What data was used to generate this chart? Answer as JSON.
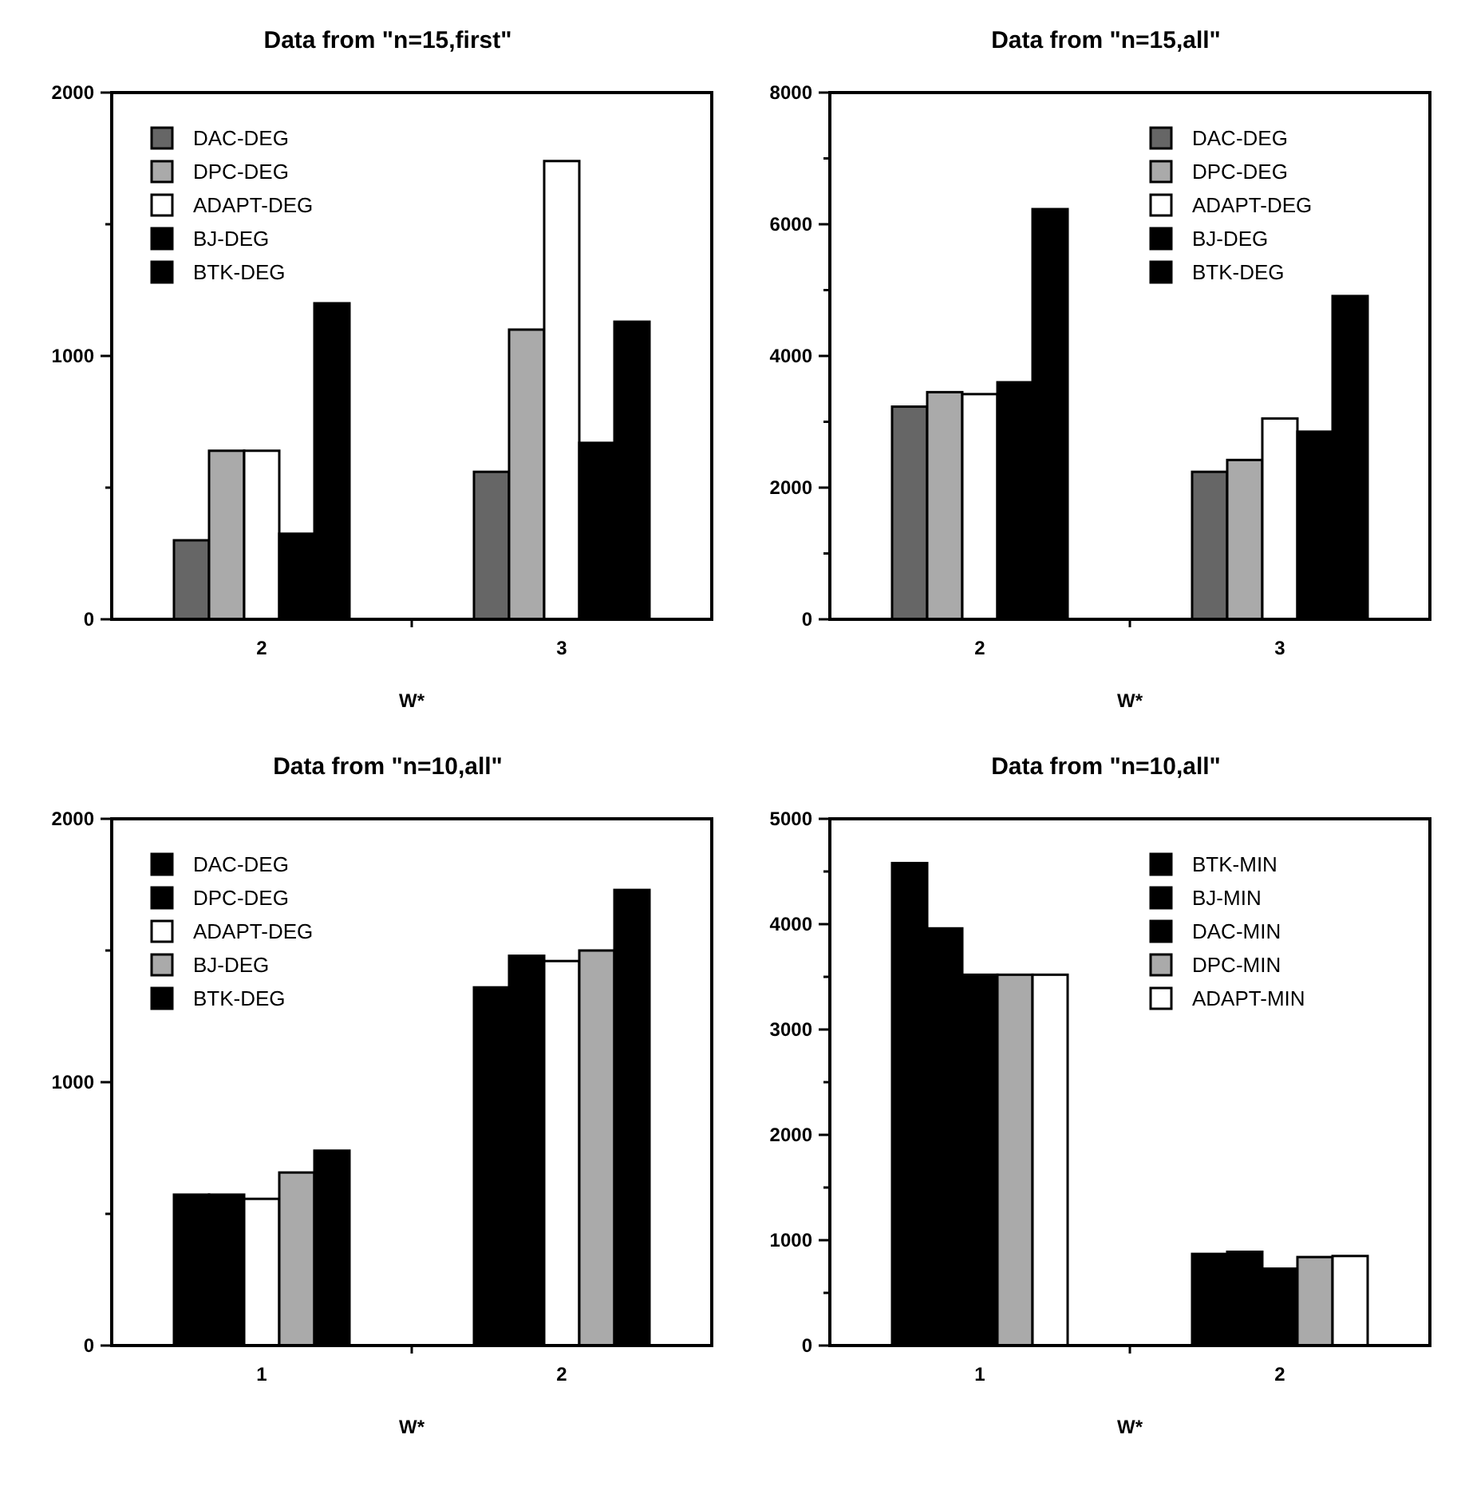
{
  "chart_data": [
    {
      "type": "bar",
      "title": "Data from \"n=15,first\"",
      "xlabel": "W*",
      "categories": [
        "2",
        "3"
      ],
      "ylim": [
        0,
        2000
      ],
      "yticks": [
        0,
        {
          "value": 500,
          "label": null
        },
        1000,
        {
          "value": 1500,
          "label": null
        },
        2000
      ],
      "legend": "top left",
      "grid": false,
      "series": [
        {
          "name": "DAC-DEG",
          "color": "#666666",
          "values": [
            300,
            560
          ]
        },
        {
          "name": "DPC-DEG",
          "color": "#aaaaaa",
          "values": [
            640,
            1100
          ]
        },
        {
          "name": "ADAPT-DEG",
          "color": "#ffffff",
          "values": [
            640,
            1740
          ]
        },
        {
          "name": "BJ-DEG",
          "color": "#000000",
          "values": [
            325,
            670
          ]
        },
        {
          "name": "BTK-DEG",
          "color": "#000000",
          "values": [
            1200,
            1130
          ]
        }
      ]
    },
    {
      "type": "bar",
      "title": "Data from \"n=15,all\"",
      "xlabel": "W*",
      "categories": [
        "2",
        "3"
      ],
      "ylim": [
        0,
        8000
      ],
      "yticks": [
        0,
        {
          "value": 1000,
          "label": null
        },
        2000,
        {
          "value": 3000,
          "label": null
        },
        4000,
        {
          "value": 5000,
          "label": null
        },
        6000,
        {
          "value": 7000,
          "label": null
        },
        8000
      ],
      "legend": "top right",
      "grid": false,
      "series": [
        {
          "name": "DAC-DEG",
          "color": "#666666",
          "values": [
            3230,
            2240
          ]
        },
        {
          "name": "DPC-DEG",
          "color": "#aaaaaa",
          "values": [
            3450,
            2420
          ]
        },
        {
          "name": "ADAPT-DEG",
          "color": "#ffffff",
          "values": [
            3420,
            3050
          ]
        },
        {
          "name": "BJ-DEG",
          "color": "#000000",
          "values": [
            3600,
            2850
          ]
        },
        {
          "name": "BTK-DEG",
          "color": "#000000",
          "values": [
            6230,
            4910
          ]
        }
      ]
    },
    {
      "type": "bar",
      "title": "Data from \"n=10,all\"",
      "xlabel": "W*",
      "categories": [
        "1",
        "2"
      ],
      "ylim": [
        0,
        2000
      ],
      "yticks": [
        0,
        {
          "value": 500,
          "label": null
        },
        1000,
        {
          "value": 1500,
          "label": null
        },
        2000
      ],
      "legend": "top left",
      "grid": false,
      "series": [
        {
          "name": "DAC-DEG",
          "color": "#000000",
          "values": [
            573,
            1360
          ]
        },
        {
          "name": "DPC-DEG",
          "color": "#000000",
          "values": [
            573,
            1480
          ]
        },
        {
          "name": "ADAPT-DEG",
          "color": "#ffffff",
          "values": [
            557,
            1460
          ]
        },
        {
          "name": "BJ-DEG",
          "color": "#aaaaaa",
          "values": [
            657,
            1500
          ]
        },
        {
          "name": "BTK-DEG",
          "color": "#000000",
          "values": [
            740,
            1730
          ]
        }
      ]
    },
    {
      "type": "bar",
      "title": "Data from \"n=10,all\"",
      "xlabel": "W*",
      "categories": [
        "1",
        "2"
      ],
      "ylim": [
        0,
        5000
      ],
      "yticks": [
        0,
        {
          "value": 500,
          "label": null
        },
        1000,
        {
          "value": 1500,
          "label": null
        },
        2000,
        {
          "value": 2500,
          "label": null
        },
        3000,
        {
          "value": 3500,
          "label": null
        },
        4000,
        {
          "value": 4500,
          "label": null
        },
        5000
      ],
      "legend": "top right",
      "grid": false,
      "series": [
        {
          "name": "BTK-MIN",
          "color": "#000000",
          "values": [
            4580,
            870
          ]
        },
        {
          "name": "BJ-MIN",
          "color": "#000000",
          "values": [
            3960,
            890
          ]
        },
        {
          "name": "DAC-MIN",
          "color": "#000000",
          "values": [
            3520,
            730
          ]
        },
        {
          "name": "DPC-MIN",
          "color": "#aaaaaa",
          "values": [
            3520,
            840
          ]
        },
        {
          "name": "ADAPT-MIN",
          "color": "#ffffff",
          "values": [
            3520,
            850
          ]
        }
      ]
    }
  ]
}
